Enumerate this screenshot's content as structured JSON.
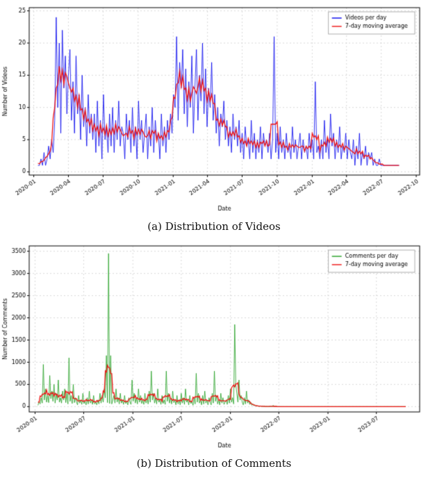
{
  "page": {
    "background": "#ffffff"
  },
  "figures": [
    {
      "caption": "(a) Distribution of Videos"
    },
    {
      "caption": "(b) Distribution of Comments"
    }
  ],
  "chart_data": [
    {
      "type": "line",
      "title": "",
      "xlabel": "Date",
      "ylabel": "Number of Videos",
      "grid": true,
      "legend_position": "upper right",
      "x_start": "2020-01-12",
      "step_days": 4,
      "xlim": [
        "2019-12-20",
        "2022-10-10"
      ],
      "ylim": [
        -0.5,
        25.5
      ],
      "yticks": [
        0,
        5,
        10,
        15,
        20,
        25
      ],
      "xticks": [
        "2020-01",
        "2020-04",
        "2020-07",
        "2020-10",
        "2021-01",
        "2021-04",
        "2021-07",
        "2021-10",
        "2022-01",
        "2022-04",
        "2022-07",
        "2022-10"
      ],
      "ma_window_samples": 5,
      "series": [
        {
          "name": "Videos per day",
          "color": "#0000ee",
          "line_width": 0.8,
          "values": [
            1,
            1,
            2,
            1,
            3,
            1,
            2,
            4,
            2,
            5,
            3,
            8,
            24,
            10,
            20,
            6,
            22,
            13,
            18,
            9,
            15,
            19,
            8,
            14,
            6,
            18,
            9,
            12,
            5,
            15,
            7,
            10,
            4,
            12,
            6,
            9,
            5,
            9,
            3,
            11,
            4,
            8,
            2,
            12,
            5,
            7,
            3,
            9,
            4,
            10,
            3,
            8,
            5,
            11,
            4,
            7,
            6,
            2,
            9,
            5,
            8,
            3,
            10,
            4,
            7,
            2,
            11,
            5,
            8,
            3,
            6,
            9,
            2,
            7,
            4,
            10,
            3,
            8,
            5,
            6,
            2,
            9,
            4,
            7,
            3,
            8,
            5,
            9,
            6,
            12,
            10,
            21,
            8,
            17,
            13,
            19,
            9,
            16,
            7,
            14,
            10,
            18,
            6,
            13,
            19,
            8,
            15,
            11,
            20,
            9,
            16,
            7,
            13,
            10,
            17,
            8,
            12,
            6,
            10,
            4,
            9,
            7,
            11,
            5,
            8,
            4,
            7,
            3,
            9,
            5,
            7,
            4,
            8,
            3,
            6,
            2,
            7,
            4,
            5,
            2,
            8,
            3,
            6,
            2,
            5,
            3,
            7,
            2,
            6,
            4,
            5,
            3,
            6,
            2,
            5,
            21,
            3,
            6,
            2,
            7,
            3,
            5,
            2,
            6,
            3,
            4,
            2,
            7,
            3,
            5,
            2,
            4,
            6,
            2,
            5,
            3,
            4,
            2,
            6,
            3,
            5,
            2,
            14,
            3,
            4,
            2,
            5,
            2,
            8,
            3,
            5,
            2,
            9,
            4,
            6,
            2,
            5,
            3,
            7,
            2,
            4,
            3,
            6,
            2,
            5,
            3,
            2,
            5,
            1,
            4,
            2,
            6,
            1,
            3,
            2,
            4,
            1,
            3,
            2,
            3,
            1,
            2,
            1,
            1,
            2,
            1,
            1,
            1,
            1,
            1,
            1,
            1,
            1,
            1,
            1,
            1,
            1,
            1
          ]
        },
        {
          "name": "7-day moving average",
          "color": "#ee1111",
          "line_width": 1.3,
          "derived": "moving_average"
        }
      ]
    },
    {
      "type": "line",
      "title": "",
      "xlabel": "Date",
      "ylabel": "Number of Comments",
      "grid": true,
      "legend_position": "upper right",
      "x_start": "2020-01-12",
      "step_days": 4,
      "xlim": [
        "2019-12-10",
        "2023-12-10"
      ],
      "ylim": [
        -120,
        3620
      ],
      "yticks": [
        0,
        500,
        1000,
        1500,
        2000,
        2500,
        3000,
        3500
      ],
      "xticks": [
        "2020-01",
        "2020-07",
        "2021-01",
        "2021-07",
        "2022-01",
        "2022-07",
        "2023-01",
        "2023-07"
      ],
      "ma_window_samples": 7,
      "flat_tail": {
        "end": "2023-10-20",
        "value": 0
      },
      "series": [
        {
          "name": "Comments per day",
          "color": "#1f9e1f",
          "line_width": 0.8,
          "values": [
            30,
            120,
            60,
            200,
            80,
            950,
            150,
            400,
            100,
            250,
            90,
            700,
            180,
            350,
            120,
            500,
            80,
            300,
            150,
            600,
            100,
            200,
            80,
            350,
            150,
            400,
            90,
            300,
            60,
            1100,
            120,
            250,
            70,
            500,
            90,
            200,
            100,
            40,
            250,
            80,
            150,
            50,
            300,
            70,
            120,
            40,
            200,
            60,
            350,
            80,
            150,
            50,
            250,
            60,
            100,
            40,
            150,
            60,
            300,
            80,
            250,
            100,
            400,
            200,
            1150,
            90,
            3450,
            70,
            1150,
            60,
            150,
            250,
            80,
            400,
            100,
            200,
            60,
            300,
            80,
            150,
            50,
            250,
            70,
            120,
            40,
            200,
            100,
            50,
            600,
            120,
            300,
            80,
            200,
            60,
            400,
            100,
            250,
            70,
            150,
            50,
            300,
            80,
            200,
            60,
            350,
            100,
            800,
            150,
            300,
            80,
            200,
            60,
            400,
            100,
            150,
            50,
            250,
            70,
            150,
            50,
            800,
            120,
            300,
            80,
            200,
            60,
            350,
            90,
            150,
            40,
            250,
            60,
            150,
            40,
            300,
            80,
            200,
            50,
            400,
            100,
            150,
            40,
            250,
            70,
            120,
            30,
            200,
            60,
            750,
            100,
            300,
            80,
            150,
            40,
            250,
            60,
            350,
            80,
            150,
            40,
            200,
            100,
            40,
            300,
            80,
            800,
            120,
            250,
            60,
            150,
            40,
            300,
            80,
            200,
            50,
            100,
            150,
            50,
            250,
            80,
            400,
            100,
            200,
            60,
            1850,
            500,
            300,
            100,
            600,
            150,
            250,
            100,
            40,
            200,
            60,
            350,
            80,
            150,
            50,
            100,
            30,
            60,
            20,
            40,
            10,
            20,
            10,
            5,
            15,
            5,
            10,
            3,
            8,
            2,
            5,
            2,
            3,
            1,
            2,
            1,
            30,
            1,
            2,
            1,
            1,
            0,
            1,
            0,
            1,
            0,
            0
          ]
        },
        {
          "name": "7-day moving average",
          "color": "#ee1111",
          "line_width": 1.3,
          "derived": "moving_average"
        }
      ]
    }
  ]
}
